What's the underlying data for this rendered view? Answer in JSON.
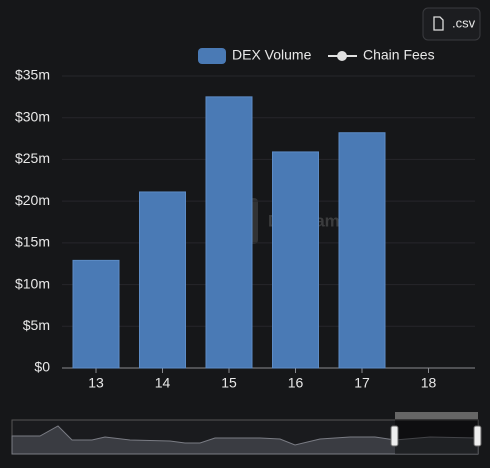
{
  "button": ".csv",
  "watermark": "DefiLlama",
  "chart_data": {
    "type": "bar",
    "categories": [
      "13",
      "14",
      "15",
      "16",
      "17",
      "18"
    ],
    "series": [
      {
        "name": "DEX Volume",
        "color": "#4a7ab5",
        "values": [
          12.9,
          21.1,
          32.5,
          25.9,
          28.2,
          null
        ]
      },
      {
        "name": "Chain Fees",
        "color": "#e0e0e0",
        "values": [
          null,
          null,
          null,
          null,
          null,
          null
        ]
      }
    ],
    "ylim": [
      0,
      35
    ],
    "yticks": [
      {
        "value": 0,
        "label": "$0"
      },
      {
        "value": 5,
        "label": "$5m"
      },
      {
        "value": 10,
        "label": "$10m"
      },
      {
        "value": 15,
        "label": "$15m"
      },
      {
        "value": 20,
        "label": "$20m"
      },
      {
        "value": 25,
        "label": "$25m"
      },
      {
        "value": 30,
        "label": "$30m"
      },
      {
        "value": 35,
        "label": "$35m"
      }
    ],
    "grid": true
  }
}
